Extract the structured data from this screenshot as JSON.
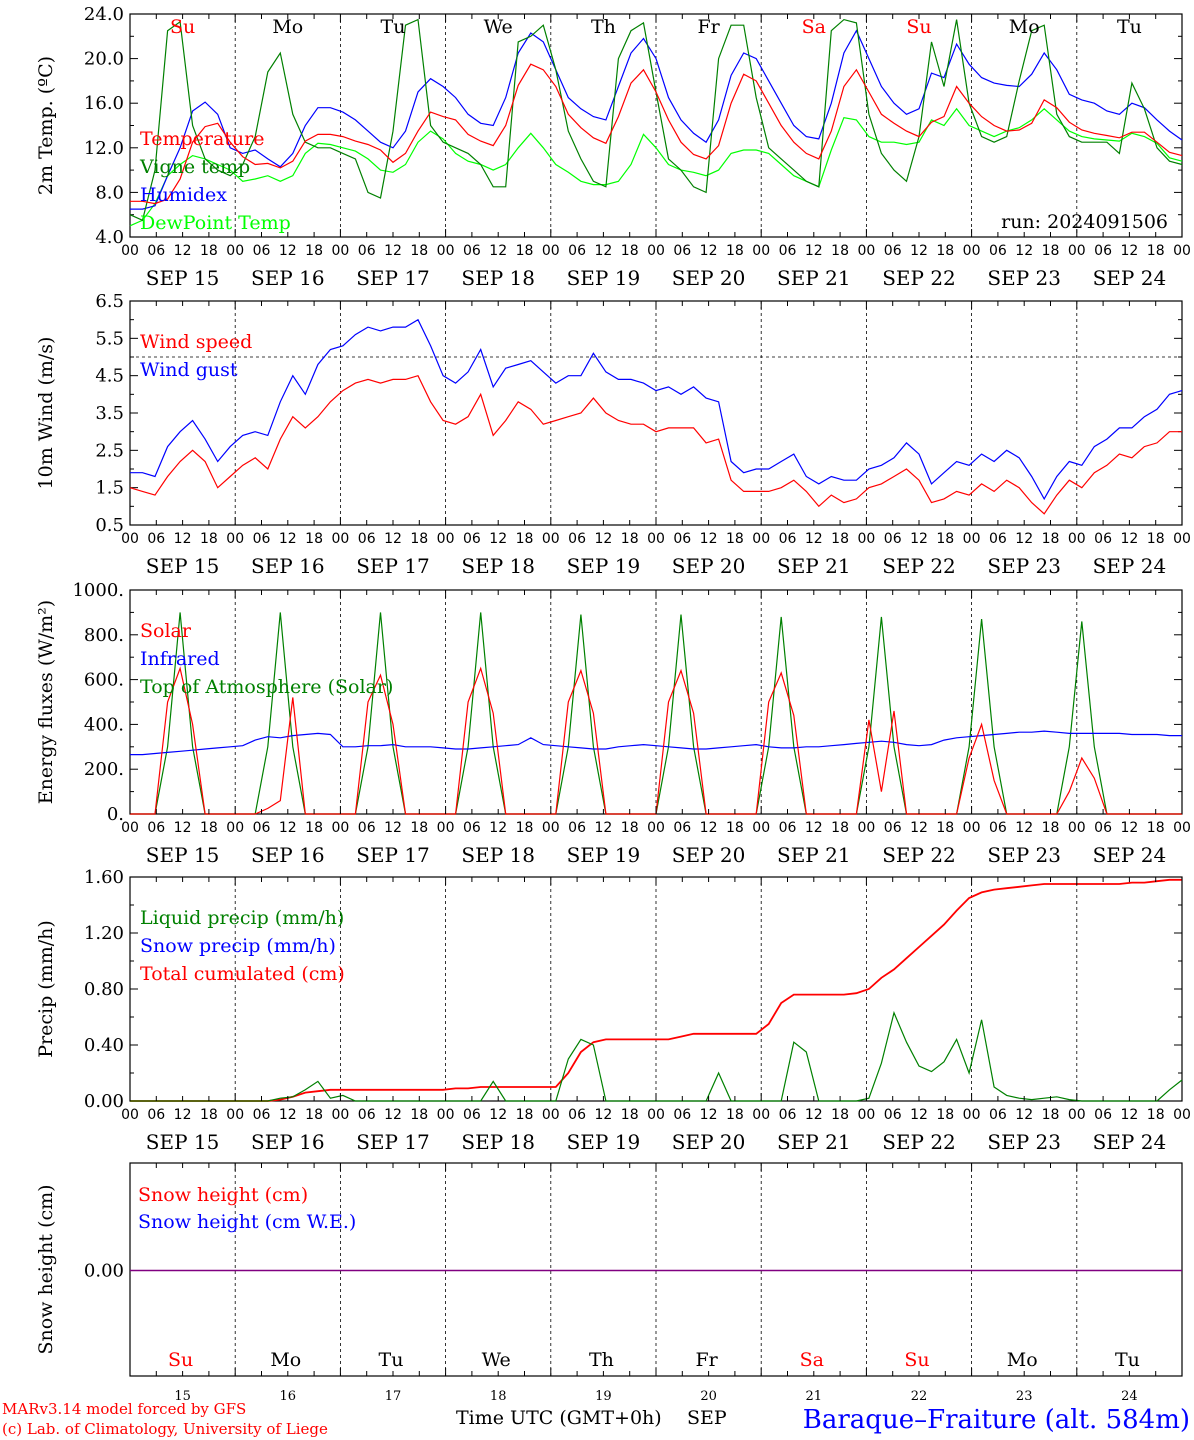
{
  "chart_data": [
    {
      "type": "line",
      "ylabel": "2m Temp. (ºC)",
      "yticks": [
        "24.0",
        "20.0",
        "16.0",
        "12.0",
        "8.0",
        "4.0"
      ],
      "ylim": [
        4,
        24
      ],
      "day_names": [
        "Su",
        "Mo",
        "Tu",
        "We",
        "Th",
        "Fr",
        "Sa",
        "Su",
        "Mo",
        "Tu"
      ],
      "weekend_days": [
        0,
        6,
        7
      ],
      "run_label": "run: 2024091506",
      "series": [
        {
          "name": "Temperature",
          "color": "#ff0000",
          "values": [
            7.2,
            7.2,
            7.0,
            7.4,
            9.2,
            12.5,
            13.9,
            14.2,
            12.5,
            11.2,
            10.5,
            10.6,
            10.2,
            10.8,
            12.6,
            13.2,
            13.2,
            13.0,
            12.6,
            12.3,
            11.8,
            10.7,
            11.5,
            13.5,
            15.2,
            14.8,
            14.5,
            13.2,
            12.6,
            12.2,
            14.0,
            17.6,
            19.5,
            19.0,
            17.5,
            15.0,
            13.8,
            12.9,
            12.4,
            14.8,
            17.8,
            19.0,
            17.0,
            14.5,
            12.5,
            11.4,
            11.0,
            12.2,
            16.0,
            18.6,
            18.0,
            16.0,
            14.0,
            12.5,
            11.5,
            11.0,
            13.5,
            17.5,
            19.0,
            17.0,
            15.0,
            14.2,
            13.5,
            13.0,
            14.3,
            14.8,
            17.5,
            16.0,
            14.8,
            14.0,
            13.5,
            13.6,
            14.2,
            16.3,
            15.6,
            14.3,
            13.6,
            13.3,
            13.1,
            12.9,
            13.4,
            13.4,
            12.5,
            11.6,
            11.3
          ]
        },
        {
          "name": "Vigne temp",
          "color": "#008000",
          "values": [
            6.0,
            5.5,
            10.0,
            22.5,
            23.3,
            14.0,
            11.0,
            10.0,
            9.5,
            10.5,
            13.0,
            18.8,
            20.5,
            15.0,
            12.5,
            12.0,
            12.0,
            11.5,
            11.0,
            8.0,
            7.5,
            13.5,
            23.0,
            23.5,
            14.0,
            12.5,
            12.0,
            11.5,
            10.5,
            8.5,
            8.5,
            21.5,
            22.0,
            23.0,
            19.0,
            13.5,
            11.0,
            9.0,
            8.5,
            20.0,
            22.5,
            23.2,
            17.0,
            11.0,
            10.0,
            8.5,
            8.0,
            20.0,
            23.0,
            23.0,
            16.5,
            12.0,
            11.0,
            10.0,
            9.0,
            8.5,
            22.5,
            23.5,
            23.2,
            15.0,
            11.5,
            10.0,
            9.0,
            13.0,
            21.5,
            17.5,
            23.5,
            16.0,
            13.0,
            12.5,
            13.0,
            18.0,
            22.5,
            23.0,
            15.0,
            13.0,
            12.5,
            12.5,
            12.5,
            11.5,
            17.8,
            15.5,
            12.0,
            10.8,
            10.5
          ]
        },
        {
          "name": "Humidex",
          "color": "#0000ff",
          "values": [
            6.5,
            6.5,
            6.8,
            9.5,
            12.0,
            15.3,
            16.1,
            15.0,
            12.0,
            11.5,
            11.8,
            11.0,
            10.3,
            11.5,
            14.0,
            15.6,
            15.6,
            15.2,
            14.5,
            13.5,
            12.5,
            12.0,
            13.5,
            17.0,
            18.2,
            17.5,
            16.5,
            15.0,
            14.2,
            14.0,
            16.5,
            20.5,
            22.3,
            21.5,
            19.0,
            16.5,
            15.5,
            14.8,
            14.5,
            17.5,
            20.5,
            21.8,
            20.0,
            16.5,
            14.5,
            13.3,
            12.5,
            14.5,
            18.5,
            20.5,
            20.0,
            18.0,
            16.0,
            14.0,
            13.0,
            12.8,
            16.0,
            20.5,
            22.5,
            20.0,
            17.5,
            16.0,
            15.0,
            15.5,
            18.7,
            18.3,
            21.3,
            19.5,
            18.3,
            17.8,
            17.6,
            17.5,
            18.6,
            20.5,
            19.0,
            16.8,
            16.3,
            16.0,
            15.3,
            15.0,
            16.0,
            15.6,
            14.5,
            13.5,
            12.7
          ]
        },
        {
          "name": "DewPoint Temp",
          "color": "#00ff00",
          "values": [
            5.0,
            5.5,
            7.0,
            9.5,
            10.5,
            11.3,
            11.0,
            10.5,
            10.0,
            9.0,
            9.2,
            9.5,
            9.0,
            9.5,
            11.5,
            12.4,
            12.3,
            12.0,
            11.7,
            11.0,
            10.0,
            9.8,
            10.5,
            12.5,
            13.5,
            12.8,
            11.5,
            10.8,
            10.5,
            10.0,
            10.5,
            12.0,
            13.3,
            12.0,
            10.5,
            9.8,
            9.0,
            8.7,
            8.7,
            9.0,
            10.5,
            13.2,
            12.0,
            10.5,
            10.0,
            9.8,
            9.5,
            10.0,
            11.5,
            11.8,
            11.8,
            11.5,
            10.5,
            9.5,
            9.0,
            8.5,
            11.8,
            14.7,
            14.5,
            13.0,
            12.5,
            12.5,
            12.3,
            12.5,
            14.5,
            14.0,
            15.5,
            14.0,
            13.5,
            13.0,
            13.5,
            13.8,
            14.5,
            15.5,
            14.5,
            13.5,
            13.0,
            12.8,
            12.7,
            12.6,
            13.3,
            13.0,
            12.4,
            11.1,
            10.8
          ]
        }
      ]
    },
    {
      "type": "line",
      "ylabel": "10m Wind (m/s)",
      "yticks": [
        "6.5",
        "5.5",
        "4.5",
        "3.5",
        "2.5",
        "1.5",
        "0.5"
      ],
      "ylim": [
        0.5,
        6.5
      ],
      "reference_line": 5,
      "series": [
        {
          "name": "Wind speed",
          "color": "#ff0000",
          "values": [
            1.5,
            1.4,
            1.3,
            1.8,
            2.2,
            2.5,
            2.2,
            1.5,
            1.8,
            2.1,
            2.3,
            2.0,
            2.8,
            3.4,
            3.1,
            3.4,
            3.8,
            4.1,
            4.3,
            4.4,
            4.3,
            4.4,
            4.4,
            4.5,
            3.8,
            3.3,
            3.2,
            3.4,
            4.0,
            2.9,
            3.3,
            3.8,
            3.6,
            3.2,
            3.3,
            3.4,
            3.5,
            3.9,
            3.5,
            3.3,
            3.2,
            3.2,
            3.0,
            3.1,
            3.1,
            3.1,
            2.7,
            2.8,
            1.7,
            1.4,
            1.4,
            1.4,
            1.5,
            1.7,
            1.4,
            1.0,
            1.3,
            1.1,
            1.2,
            1.5,
            1.6,
            1.8,
            2.0,
            1.7,
            1.1,
            1.2,
            1.4,
            1.3,
            1.6,
            1.4,
            1.7,
            1.5,
            1.1,
            0.8,
            1.3,
            1.7,
            1.5,
            1.9,
            2.1,
            2.4,
            2.3,
            2.6,
            2.7,
            3.0,
            3.0
          ]
        },
        {
          "name": "Wind gust",
          "color": "#0000ff",
          "values": [
            1.9,
            1.9,
            1.8,
            2.6,
            3.0,
            3.3,
            2.8,
            2.2,
            2.6,
            2.9,
            3.0,
            2.9,
            3.8,
            4.5,
            4.0,
            4.8,
            5.2,
            5.3,
            5.6,
            5.8,
            5.7,
            5.8,
            5.8,
            6.0,
            5.3,
            4.5,
            4.3,
            4.6,
            5.2,
            4.2,
            4.7,
            4.8,
            4.9,
            4.6,
            4.3,
            4.5,
            4.5,
            5.1,
            4.6,
            4.4,
            4.4,
            4.3,
            4.1,
            4.2,
            4.0,
            4.2,
            3.9,
            3.8,
            2.2,
            1.9,
            2.0,
            2.0,
            2.2,
            2.4,
            1.8,
            1.6,
            1.8,
            1.7,
            1.7,
            2.0,
            2.1,
            2.3,
            2.7,
            2.4,
            1.6,
            1.9,
            2.2,
            2.1,
            2.4,
            2.2,
            2.5,
            2.3,
            1.8,
            1.2,
            1.8,
            2.2,
            2.1,
            2.6,
            2.8,
            3.1,
            3.1,
            3.4,
            3.6,
            4.0,
            4.1
          ]
        }
      ]
    },
    {
      "type": "line",
      "ylabel": "Energy fluxes (W/m²)",
      "yticks": [
        "1000.",
        "800.",
        "600.",
        "400.",
        "200.",
        "0."
      ],
      "ylim": [
        0,
        1000
      ],
      "series": [
        {
          "name": "Solar",
          "color": "#ff0000",
          "values": [
            0,
            0,
            0,
            500,
            650,
            400,
            0,
            0,
            0,
            0,
            0,
            25,
            60,
            520,
            0,
            0,
            0,
            0,
            0,
            500,
            620,
            400,
            0,
            0,
            0,
            0,
            0,
            500,
            650,
            450,
            0,
            0,
            0,
            0,
            0,
            500,
            640,
            450,
            0,
            0,
            0,
            0,
            0,
            500,
            640,
            450,
            0,
            0,
            0,
            0,
            0,
            500,
            630,
            440,
            0,
            0,
            0,
            0,
            0,
            420,
            100,
            460,
            0,
            0,
            0,
            0,
            0,
            250,
            400,
            150,
            0,
            0,
            0,
            0,
            0,
            100,
            250,
            160,
            0,
            0,
            0,
            0,
            0,
            0,
            0
          ]
        },
        {
          "name": "Infrared",
          "color": "#0000ff",
          "values": [
            265,
            265,
            270,
            275,
            280,
            285,
            290,
            295,
            300,
            305,
            330,
            345,
            340,
            350,
            355,
            360,
            355,
            300,
            300,
            305,
            305,
            310,
            300,
            300,
            300,
            295,
            290,
            290,
            295,
            300,
            305,
            310,
            340,
            310,
            305,
            300,
            295,
            290,
            290,
            300,
            305,
            310,
            305,
            300,
            295,
            290,
            290,
            295,
            300,
            305,
            310,
            300,
            295,
            295,
            300,
            300,
            305,
            310,
            315,
            320,
            325,
            320,
            310,
            305,
            310,
            330,
            340,
            345,
            350,
            355,
            360,
            365,
            365,
            370,
            365,
            360,
            360,
            360,
            360,
            360,
            355,
            355,
            355,
            350,
            350
          ]
        },
        {
          "name": "Top of Atmosphere (Solar)",
          "color": "#008000",
          "values": [
            0,
            0,
            0,
            300,
            900,
            300,
            0,
            0,
            0,
            0,
            0,
            300,
            900,
            300,
            0,
            0,
            0,
            0,
            0,
            300,
            900,
            300,
            0,
            0,
            0,
            0,
            0,
            300,
            900,
            300,
            0,
            0,
            0,
            0,
            0,
            300,
            890,
            300,
            0,
            0,
            0,
            0,
            0,
            300,
            890,
            300,
            0,
            0,
            0,
            0,
            0,
            300,
            880,
            300,
            0,
            0,
            0,
            0,
            0,
            300,
            880,
            300,
            0,
            0,
            0,
            0,
            0,
            300,
            870,
            300,
            0,
            0,
            0,
            0,
            0,
            300,
            860,
            300,
            0,
            0,
            0,
            0,
            0,
            0,
            0
          ]
        }
      ]
    },
    {
      "type": "line",
      "ylabel": "Precip (mm/h)",
      "yticks": [
        "1.60",
        "1.20",
        "0.80",
        "0.40",
        "0.00"
      ],
      "ylim": [
        0,
        1.6
      ],
      "series": [
        {
          "name": "Liquid precip (mm/h)",
          "color": "#008000",
          "values": [
            0,
            0,
            0,
            0,
            0,
            0,
            0,
            0,
            0,
            0,
            0,
            0,
            0.02,
            0.03,
            0.08,
            0.14,
            0.02,
            0.04,
            0,
            0,
            0,
            0,
            0,
            0,
            0,
            0,
            0,
            0,
            0,
            0.14,
            0,
            0,
            0,
            0,
            0,
            0.3,
            0.44,
            0.4,
            0,
            0,
            0,
            0,
            0,
            0,
            0,
            0,
            0,
            0.2,
            0,
            0,
            0,
            0,
            0,
            0.42,
            0.35,
            0,
            0,
            0,
            0,
            0.02,
            0.27,
            0.63,
            0.42,
            0.25,
            0.21,
            0.28,
            0.44,
            0.2,
            0.58,
            0.1,
            0.04,
            0.02,
            0.01,
            0.02,
            0.03,
            0.01,
            0,
            0,
            0,
            0,
            0,
            0,
            0,
            0.08,
            0.15
          ]
        },
        {
          "name": "Snow precip (mm/h)",
          "color": "#0000ff",
          "values": []
        },
        {
          "name": "Total cumulated (cm)",
          "color": "#ff0000",
          "values": [
            0,
            0,
            0,
            0,
            0,
            0,
            0,
            0,
            0,
            0,
            0,
            0,
            0.01,
            0.03,
            0.06,
            0.07,
            0.08,
            0.08,
            0.08,
            0.08,
            0.08,
            0.08,
            0.08,
            0.08,
            0.08,
            0.08,
            0.09,
            0.09,
            0.1,
            0.1,
            0.1,
            0.1,
            0.1,
            0.1,
            0.1,
            0.2,
            0.35,
            0.42,
            0.44,
            0.44,
            0.44,
            0.44,
            0.44,
            0.44,
            0.46,
            0.48,
            0.48,
            0.48,
            0.48,
            0.48,
            0.48,
            0.55,
            0.7,
            0.76,
            0.76,
            0.76,
            0.76,
            0.76,
            0.77,
            0.8,
            0.88,
            0.94,
            1.02,
            1.1,
            1.18,
            1.26,
            1.36,
            1.45,
            1.49,
            1.51,
            1.52,
            1.53,
            1.54,
            1.55,
            1.55,
            1.55,
            1.55,
            1.55,
            1.55,
            1.55,
            1.56,
            1.56,
            1.57,
            1.58,
            1.58
          ]
        }
      ]
    },
    {
      "type": "line",
      "ylabel": "Snow height (cm)",
      "yticks": [
        "0.00"
      ],
      "series": [
        {
          "name": "Snow height (cm)",
          "color": "#ff0000",
          "values": [
            0,
            0
          ]
        },
        {
          "name": "Snow height (cm W.E.)",
          "color": "#0000ff",
          "values": [
            0,
            0
          ]
        }
      ]
    }
  ],
  "hour_ticks": [
    "00",
    "06",
    "12",
    "18"
  ],
  "date_labels": [
    "SEP 15",
    "SEP 16",
    "SEP 17",
    "SEP 18",
    "SEP 19",
    "SEP 20",
    "SEP 21",
    "SEP 22",
    "SEP 23",
    "SEP 24"
  ],
  "bottom_day_numbers": [
    "15",
    "16",
    "17",
    "18",
    "19",
    "20",
    "21",
    "22",
    "23",
    "24"
  ],
  "footer": {
    "model_line": "MARv3.14 model forced by GFS",
    "copyright_line": "(c) Lab. of Climatology, University of Liege",
    "xaxis_label": "Time UTC (GMT+0h)",
    "month_label": "SEP",
    "station": "Baraque–Fraiture (alt. 584m)"
  },
  "colors": {
    "red": "#ff0000",
    "blue": "#0000ff",
    "dark_green": "#008000",
    "light_green": "#00ff00",
    "purple": "#800080"
  }
}
